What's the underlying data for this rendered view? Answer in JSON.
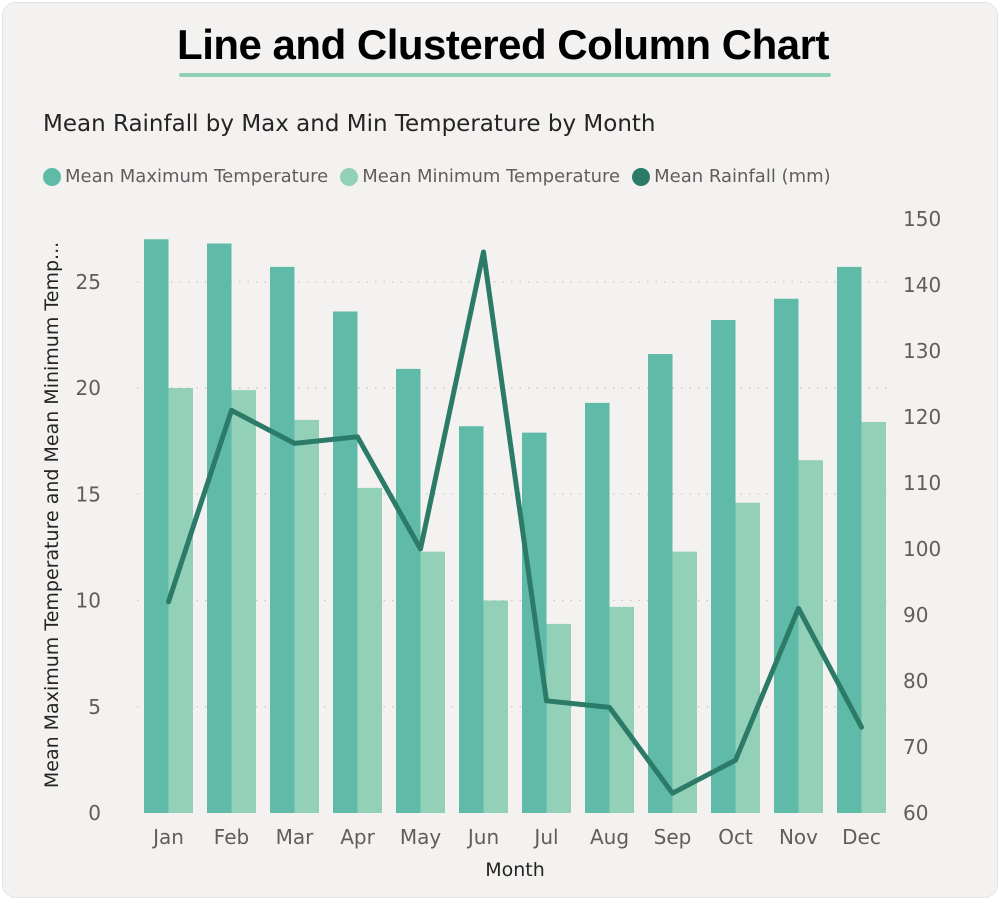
{
  "page": {
    "title": "Line and Clustered Column Chart"
  },
  "chart_data": {
    "type": "bar+line",
    "title": "Mean Rainfall by Max and Min Temperature by Month",
    "categories": [
      "Jan",
      "Feb",
      "Mar",
      "Apr",
      "May",
      "Jun",
      "Jul",
      "Aug",
      "Sep",
      "Oct",
      "Nov",
      "Dec"
    ],
    "series": [
      {
        "name": "Mean Maximum Temperature",
        "type": "bar",
        "axis": "left",
        "color": "#5fbaa7",
        "values": [
          27.0,
          26.8,
          25.7,
          23.6,
          20.9,
          18.2,
          17.9,
          19.3,
          21.6,
          23.2,
          24.2,
          25.7
        ]
      },
      {
        "name": "Mean Minimum Temperature",
        "type": "bar",
        "axis": "left",
        "color": "#93d0b8",
        "values": [
          20.0,
          19.9,
          18.5,
          15.3,
          12.3,
          10.0,
          8.9,
          9.7,
          12.3,
          14.6,
          16.6,
          18.4
        ]
      },
      {
        "name": "Mean Rainfall (mm)",
        "type": "line",
        "axis": "right",
        "color": "#2c7a68",
        "values": [
          92,
          121,
          116,
          117,
          100,
          145,
          77,
          76,
          63,
          68,
          91,
          73
        ]
      }
    ],
    "xlabel": "Month",
    "ylabel": "Mean Maximum Temperature and Mean Minimum Temp...",
    "y_left": {
      "min": 0,
      "max": 28,
      "ticks": [
        0,
        5,
        10,
        15,
        20,
        25
      ]
    },
    "y_right": {
      "min": 60,
      "max": 150,
      "ticks": [
        60,
        70,
        80,
        90,
        100,
        110,
        120,
        130,
        140,
        150
      ]
    },
    "legend_position": "top-left",
    "grid": true
  }
}
